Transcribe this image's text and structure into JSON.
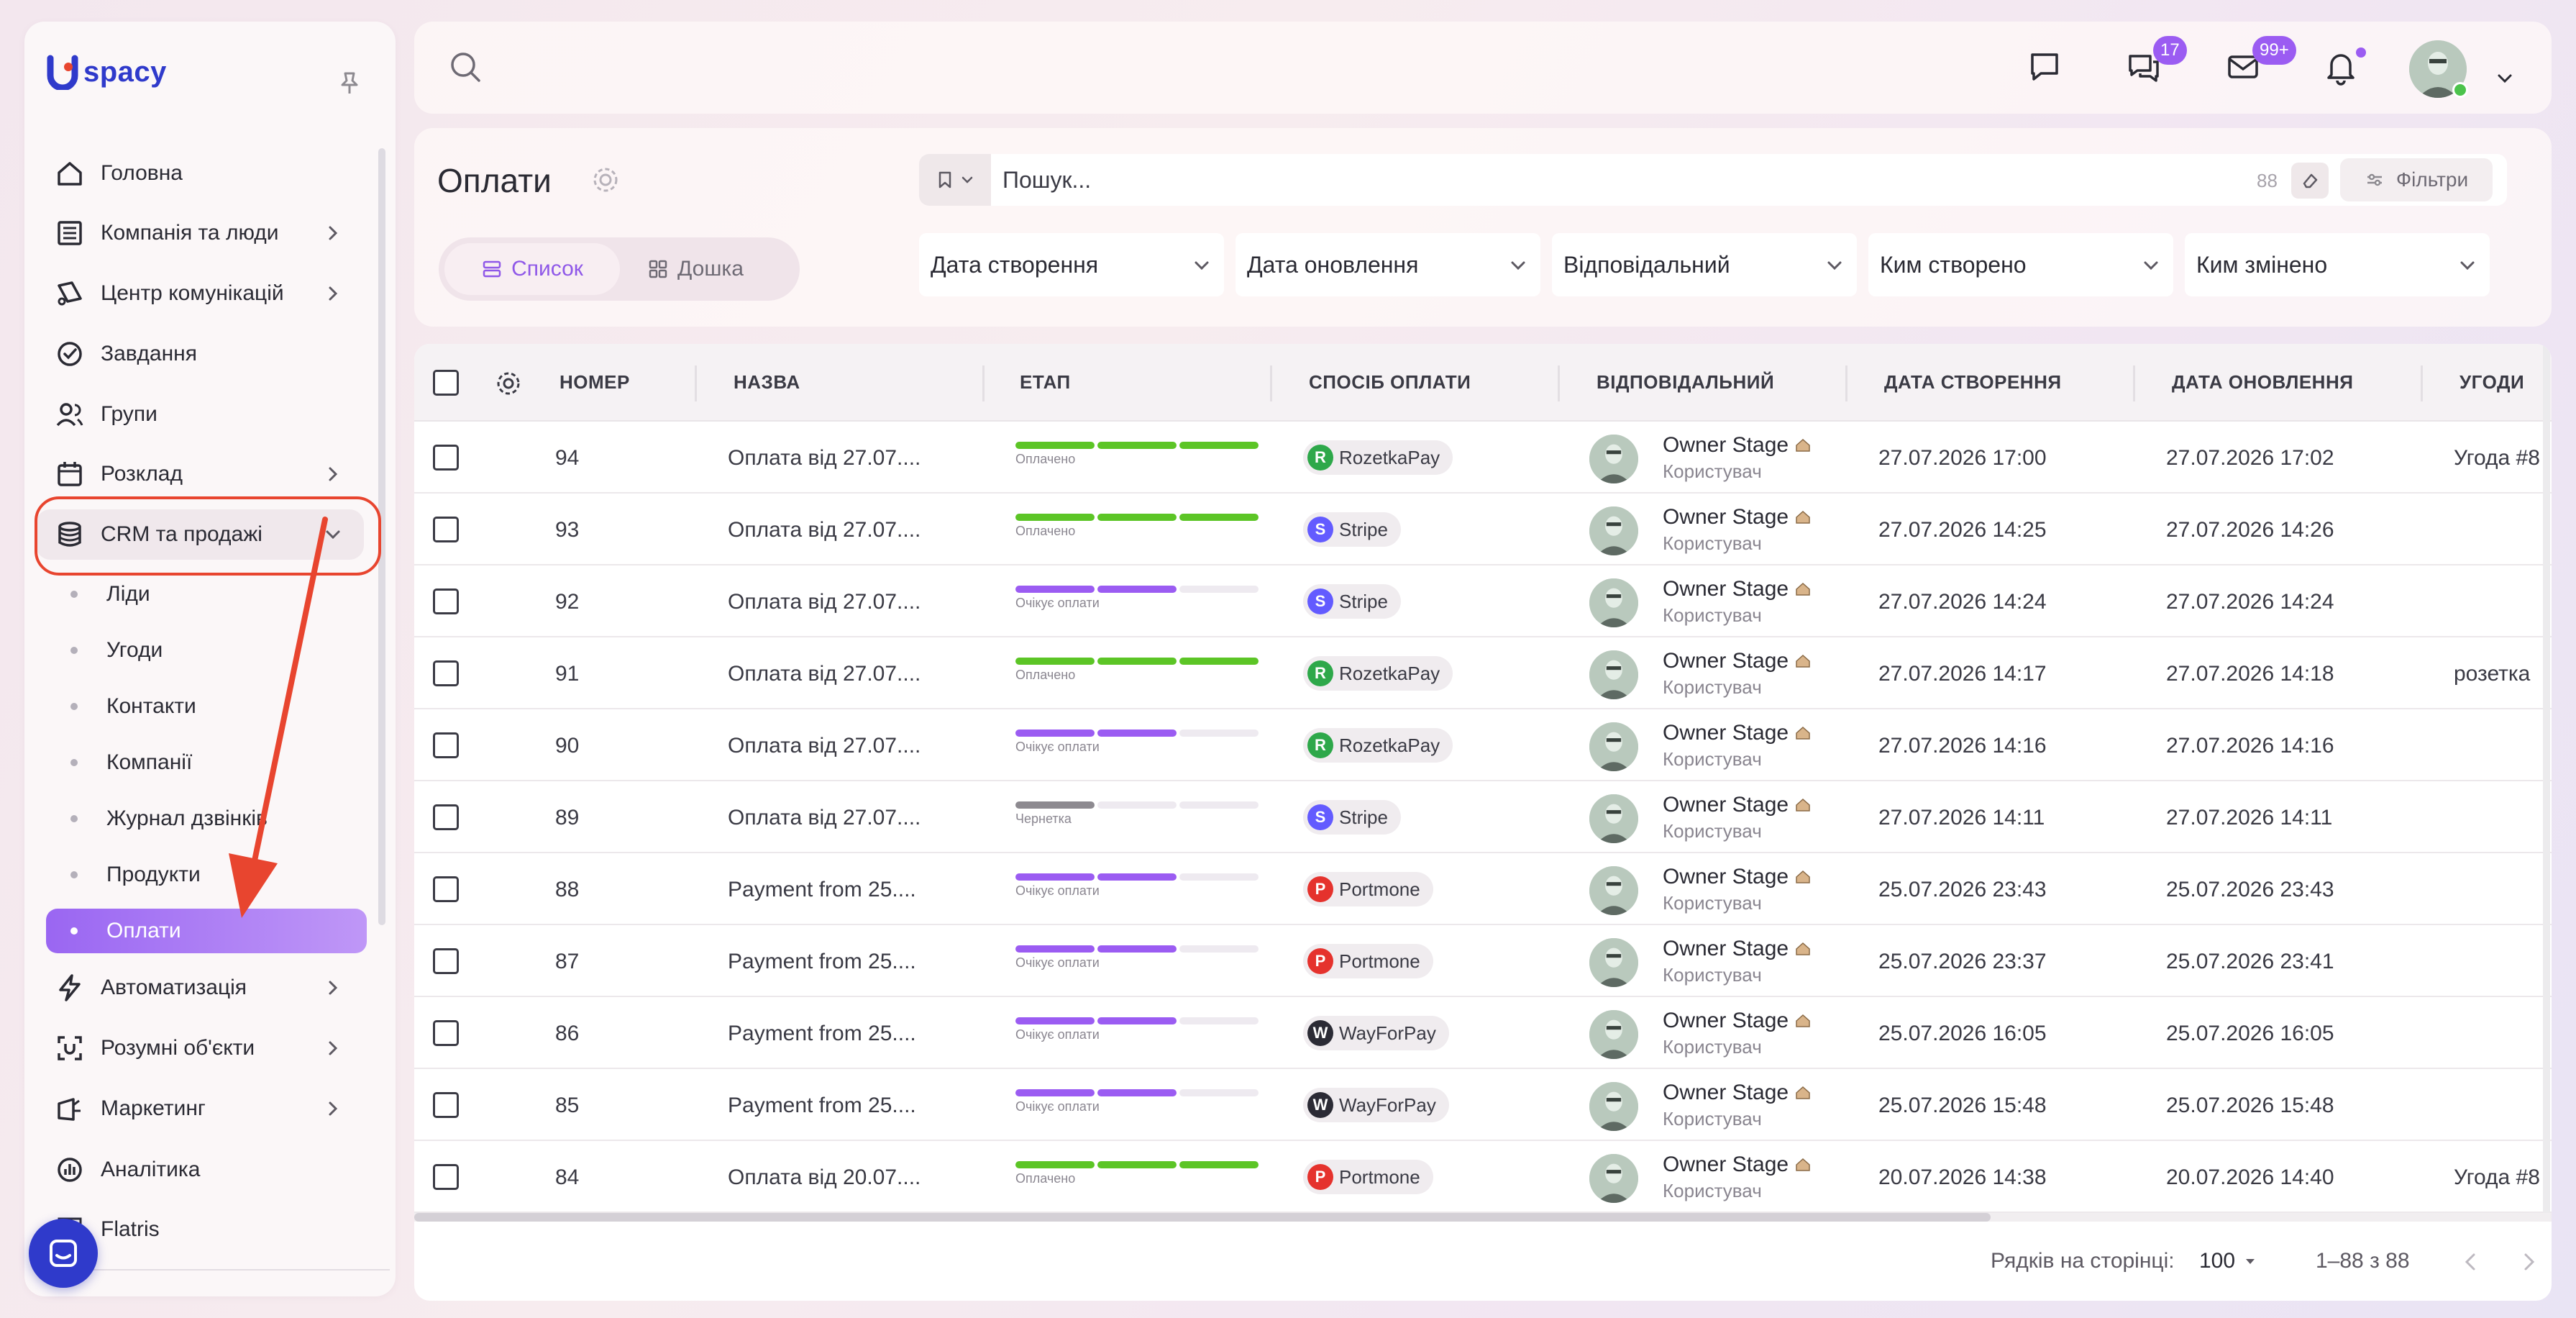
{
  "app": {
    "logo_text": "spacy"
  },
  "sidebar": {
    "items": [
      {
        "label": "Головна",
        "icon": "home-icon"
      },
      {
        "label": "Компанія та люди",
        "icon": "company-icon"
      },
      {
        "label": "Центр комунікацій",
        "icon": "communications-icon"
      },
      {
        "label": "Завдання",
        "icon": "tasks-icon"
      },
      {
        "label": "Групи",
        "icon": "groups-icon"
      },
      {
        "label": "Розклад",
        "icon": "calendar-icon"
      },
      {
        "label": "CRM та продажі",
        "icon": "database-icon"
      },
      {
        "label": "Автоматизація",
        "icon": "lightning-icon"
      },
      {
        "label": "Розумні об'єкти",
        "icon": "smart-objects-icon"
      },
      {
        "label": "Маркетинг",
        "icon": "marketing-icon"
      },
      {
        "label": "Аналітика",
        "icon": "analytics-icon"
      },
      {
        "label": "Flatris",
        "icon": "flatris-icon"
      }
    ],
    "crm_sub": [
      "Ліди",
      "Угоди",
      "Контакти",
      "Компанії",
      "Журнал дзвінків",
      "Продукти",
      "Оплати"
    ]
  },
  "topbar": {
    "chat_badge": "17",
    "mail_badge": "99+"
  },
  "header": {
    "title": "Оплати",
    "view_list": "Список",
    "view_board": "Дошка",
    "search_placeholder": "Пошук...",
    "search_count": "88",
    "filters_label": "Фільтри",
    "filters": [
      "Дата створення",
      "Дата оновлення",
      "Відповідальний",
      "Ким створено",
      "Ким змінено"
    ]
  },
  "table": {
    "columns": {
      "number": "НОМЕР",
      "name": "НАЗВА",
      "stage": "ЕТАП",
      "method": "СПОСІБ ОПЛАТИ",
      "responsible": "ВІДПОВІДАЛЬНИЙ",
      "created": "ДАТА СТВОРЕННЯ",
      "updated": "ДАТА ОНОВЛЕННЯ",
      "deals": "УГОДИ"
    },
    "rows": [
      {
        "number": "94",
        "name": "Оплата від 27.07....",
        "stage": "Оплачено",
        "stage_level": 3,
        "stage_color": "#5cc526",
        "method": "RozetkaPay",
        "method_color": "#2ea84a",
        "method_letter": "R",
        "user": "Owner Stage",
        "role": "Користувач",
        "created": "27.07.2026 17:00",
        "updated": "27.07.2026 17:02",
        "deal": "Угода #8"
      },
      {
        "number": "93",
        "name": "Оплата від 27.07....",
        "stage": "Оплачено",
        "stage_level": 3,
        "stage_color": "#5cc526",
        "method": "Stripe",
        "method_color": "#635bff",
        "method_letter": "S",
        "user": "Owner Stage",
        "role": "Користувач",
        "created": "27.07.2026 14:25",
        "updated": "27.07.2026 14:26",
        "deal": ""
      },
      {
        "number": "92",
        "name": "Оплата від 27.07....",
        "stage": "Очікує оплати",
        "stage_level": 2,
        "stage_color": "#9b5cf2",
        "method": "Stripe",
        "method_color": "#635bff",
        "method_letter": "S",
        "user": "Owner Stage",
        "role": "Користувач",
        "created": "27.07.2026 14:24",
        "updated": "27.07.2026 14:24",
        "deal": ""
      },
      {
        "number": "91",
        "name": "Оплата від 27.07....",
        "stage": "Оплачено",
        "stage_level": 3,
        "stage_color": "#5cc526",
        "method": "RozetkaPay",
        "method_color": "#2ea84a",
        "method_letter": "R",
        "user": "Owner Stage",
        "role": "Користувач",
        "created": "27.07.2026 14:17",
        "updated": "27.07.2026 14:18",
        "deal": "розетка"
      },
      {
        "number": "90",
        "name": "Оплата від 27.07....",
        "stage": "Очікує оплати",
        "stage_level": 2,
        "stage_color": "#9b5cf2",
        "method": "RozetkaPay",
        "method_color": "#2ea84a",
        "method_letter": "R",
        "user": "Owner Stage",
        "role": "Користувач",
        "created": "27.07.2026 14:16",
        "updated": "27.07.2026 14:16",
        "deal": ""
      },
      {
        "number": "89",
        "name": "Оплата від 27.07....",
        "stage": "Чернетка",
        "stage_level": 1,
        "stage_color": "#8d8a90",
        "method": "Stripe",
        "method_color": "#635bff",
        "method_letter": "S",
        "user": "Owner Stage",
        "role": "Користувач",
        "created": "27.07.2026 14:11",
        "updated": "27.07.2026 14:11",
        "deal": ""
      },
      {
        "number": "88",
        "name": "Payment from 25....",
        "stage": "Очікує оплати",
        "stage_level": 2,
        "stage_color": "#9b5cf2",
        "method": "Portmone",
        "method_color": "#e5322d",
        "method_letter": "P",
        "user": "Owner Stage",
        "role": "Користувач",
        "created": "25.07.2026 23:43",
        "updated": "25.07.2026 23:43",
        "deal": ""
      },
      {
        "number": "87",
        "name": "Payment from 25....",
        "stage": "Очікує оплати",
        "stage_level": 2,
        "stage_color": "#9b5cf2",
        "method": "Portmone",
        "method_color": "#e5322d",
        "method_letter": "P",
        "user": "Owner Stage",
        "role": "Користувач",
        "created": "25.07.2026 23:37",
        "updated": "25.07.2026 23:41",
        "deal": ""
      },
      {
        "number": "86",
        "name": "Payment from 25....",
        "stage": "Очікує оплати",
        "stage_level": 2,
        "stage_color": "#9b5cf2",
        "method": "WayForPay",
        "method_color": "#2b2b35",
        "method_letter": "W",
        "user": "Owner Stage",
        "role": "Користувач",
        "created": "25.07.2026 16:05",
        "updated": "25.07.2026 16:05",
        "deal": ""
      },
      {
        "number": "85",
        "name": "Payment from 25....",
        "stage": "Очікує оплати",
        "stage_level": 2,
        "stage_color": "#9b5cf2",
        "method": "WayForPay",
        "method_color": "#2b2b35",
        "method_letter": "W",
        "user": "Owner Stage",
        "role": "Користувач",
        "created": "25.07.2026 15:48",
        "updated": "25.07.2026 15:48",
        "deal": ""
      },
      {
        "number": "84",
        "name": "Оплата від 20.07....",
        "stage": "Оплачено",
        "stage_level": 3,
        "stage_color": "#5cc526",
        "method": "Portmone",
        "method_color": "#e5322d",
        "method_letter": "P",
        "user": "Owner Stage",
        "role": "Користувач",
        "created": "20.07.2026 14:38",
        "updated": "20.07.2026 14:40",
        "deal": "Угода #8"
      }
    ]
  },
  "footer": {
    "rows_per_page_label": "Рядків на сторінці:",
    "rows_per_page_value": "100",
    "range": "1–88 з 88"
  },
  "colors": {
    "accent": "#9b5cf2",
    "annotation": "#e8452f",
    "brand": "#2f3acb"
  }
}
